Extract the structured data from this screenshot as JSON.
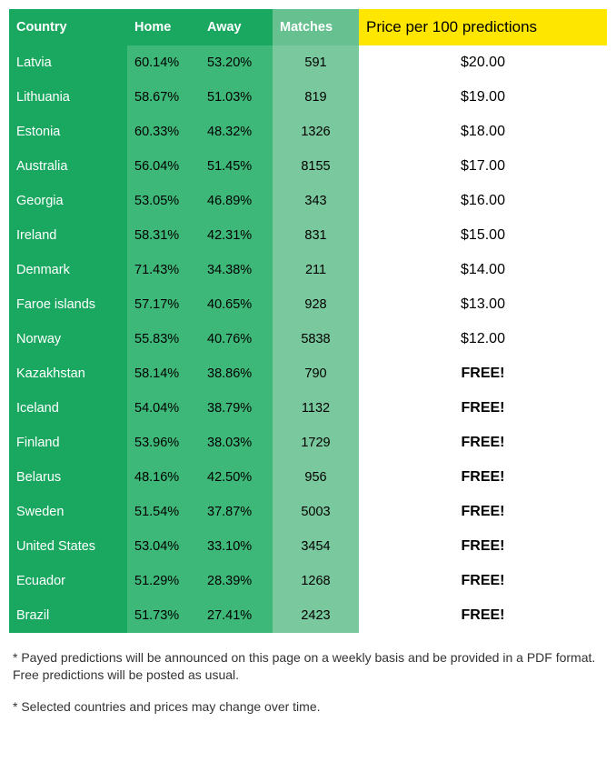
{
  "table": {
    "columns": [
      "Country",
      "Home",
      "Away",
      "Matches",
      "Price per 100 predictions"
    ],
    "col_classes": [
      "col-country",
      "col-home",
      "col-away",
      "col-matches",
      "col-price"
    ],
    "header_bg": [
      "#1aa860",
      "#1aa860",
      "#1aa860",
      "#66c08f",
      "#ffe600"
    ],
    "header_fg": [
      "#ffffff",
      "#ffffff",
      "#ffffff",
      "#ffffff",
      "#000000"
    ],
    "cell_bg": [
      "#1aa860",
      "#3eb878",
      "#3eb878",
      "#7ac99e",
      "#ffffff"
    ],
    "cell_fg": [
      "#ffffff",
      "#000000",
      "#000000",
      "#000000",
      "#000000"
    ],
    "rows": [
      {
        "country": "Latvia",
        "home": "60.14%",
        "away": "53.20%",
        "matches": "591",
        "price": "$20.00",
        "free": false
      },
      {
        "country": "Lithuania",
        "home": "58.67%",
        "away": "51.03%",
        "matches": "819",
        "price": "$19.00",
        "free": false
      },
      {
        "country": "Estonia",
        "home": "60.33%",
        "away": "48.32%",
        "matches": "1326",
        "price": "$18.00",
        "free": false
      },
      {
        "country": "Australia",
        "home": "56.04%",
        "away": "51.45%",
        "matches": "8155",
        "price": "$17.00",
        "free": false
      },
      {
        "country": "Georgia",
        "home": "53.05%",
        "away": "46.89%",
        "matches": "343",
        "price": "$16.00",
        "free": false
      },
      {
        "country": "Ireland",
        "home": "58.31%",
        "away": "42.31%",
        "matches": "831",
        "price": "$15.00",
        "free": false
      },
      {
        "country": "Denmark",
        "home": "71.43%",
        "away": "34.38%",
        "matches": "211",
        "price": "$14.00",
        "free": false
      },
      {
        "country": "Faroe islands",
        "home": "57.17%",
        "away": "40.65%",
        "matches": "928",
        "price": "$13.00",
        "free": false
      },
      {
        "country": "Norway",
        "home": "55.83%",
        "away": "40.76%",
        "matches": "5838",
        "price": "$12.00",
        "free": false
      },
      {
        "country": "Kazakhstan",
        "home": "58.14%",
        "away": "38.86%",
        "matches": "790",
        "price": "FREE!",
        "free": true
      },
      {
        "country": "Iceland",
        "home": "54.04%",
        "away": "38.79%",
        "matches": "1132",
        "price": "FREE!",
        "free": true
      },
      {
        "country": "Finland",
        "home": "53.96%",
        "away": "38.03%",
        "matches": "1729",
        "price": "FREE!",
        "free": true
      },
      {
        "country": "Belarus",
        "home": "48.16%",
        "away": "42.50%",
        "matches": "956",
        "price": "FREE!",
        "free": true
      },
      {
        "country": "Sweden",
        "home": "51.54%",
        "away": "37.87%",
        "matches": "5003",
        "price": "FREE!",
        "free": true
      },
      {
        "country": "United States",
        "home": "53.04%",
        "away": "33.10%",
        "matches": "3454",
        "price": "FREE!",
        "free": true
      },
      {
        "country": "Ecuador",
        "home": "51.29%",
        "away": "28.39%",
        "matches": "1268",
        "price": "FREE!",
        "free": true
      },
      {
        "country": "Brazil",
        "home": "51.73%",
        "away": "27.41%",
        "matches": "2423",
        "price": "FREE!",
        "free": true
      }
    ]
  },
  "footnotes": [
    "* Payed predictions will be announced on this page on a weekly basis and be provided in a PDF format. Free predictions will be posted as usual.",
    "* Selected countries and prices may change over time."
  ]
}
